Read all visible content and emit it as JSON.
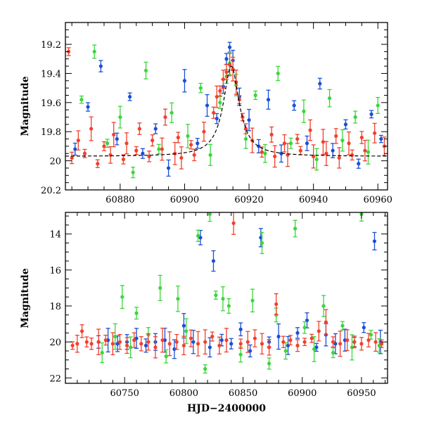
{
  "chart_data": [
    {
      "type": "scatter",
      "panel": "top",
      "title": "",
      "xlabel": "",
      "ylabel": "Magnitude",
      "xlim": [
        60863,
        60963
      ],
      "ylim": [
        20.2,
        19.05
      ],
      "y_inverted": true,
      "xticks": [
        60880,
        60900,
        60920,
        60940,
        60960
      ],
      "yticks": [
        19.2,
        19.4,
        19.6,
        19.8,
        20,
        20.2
      ],
      "xtick_labels": [
        "60880",
        "60900",
        "60920",
        "60940",
        "60960"
      ],
      "ytick_labels": [
        "19.2",
        "19.4",
        "19.6",
        "19.8",
        "20",
        "20.2"
      ],
      "model_curve": {
        "style": "dashed",
        "color": "#000000",
        "baseline_mag": 19.97,
        "peak_mag": 19.35,
        "peak_time": 60914.5,
        "width_days": 3.0
      },
      "series": [
        {
          "name": "blue",
          "color": "#1a4fd6",
          "points": [
            [
              60866,
              19.92
            ],
            [
              60870,
              19.63
            ],
            [
              60874,
              19.35
            ],
            [
              60879,
              19.85
            ],
            [
              60883,
              19.56
            ],
            [
              60887,
              19.95
            ],
            [
              60891,
              19.78
            ],
            [
              60895,
              20.05
            ],
            [
              60900,
              19.45
            ],
            [
              60904,
              19.88
            ],
            [
              60907,
              19.62
            ],
            [
              60910,
              19.71
            ],
            [
              60912,
              19.49
            ],
            [
              60913,
              19.3
            ],
            [
              60914,
              19.22
            ],
            [
              60915,
              19.31
            ],
            [
              60917,
              19.56
            ],
            [
              60920,
              19.72
            ],
            [
              60923,
              19.9
            ],
            [
              60926,
              19.58
            ],
            [
              60930,
              19.95
            ],
            [
              60934,
              19.62
            ],
            [
              60938,
              19.88
            ],
            [
              60942,
              19.47
            ],
            [
              60946,
              19.93
            ],
            [
              60950,
              19.75
            ],
            [
              60954,
              20.02
            ],
            [
              60958,
              19.68
            ],
            [
              60961,
              19.85
            ]
          ]
        },
        {
          "name": "green",
          "color": "#3ad63a",
          "points": [
            [
              60868,
              19.58
            ],
            [
              60872,
              19.25
            ],
            [
              60876,
              19.88
            ],
            [
              60880,
              19.7
            ],
            [
              60884,
              20.08
            ],
            [
              60888,
              19.38
            ],
            [
              60892,
              19.92
            ],
            [
              60896,
              19.67
            ],
            [
              60901,
              19.83
            ],
            [
              60905,
              19.5
            ],
            [
              60908,
              19.96
            ],
            [
              60911,
              19.6
            ],
            [
              60913,
              19.42
            ],
            [
              60914,
              19.33
            ],
            [
              60916,
              19.48
            ],
            [
              60919,
              19.85
            ],
            [
              60922,
              19.55
            ],
            [
              60925,
              19.95
            ],
            [
              60929,
              19.4
            ],
            [
              60933,
              19.88
            ],
            [
              60937,
              19.66
            ],
            [
              60941,
              19.99
            ],
            [
              60945,
              19.57
            ],
            [
              60949,
              19.86
            ],
            [
              60953,
              19.7
            ],
            [
              60957,
              19.94
            ],
            [
              60960,
              19.62
            ]
          ]
        },
        {
          "name": "red",
          "color": "#f0412c",
          "points": [
            [
              60864,
              19.25
            ],
            [
              60865,
              19.98
            ],
            [
              60867,
              19.86
            ],
            [
              60869,
              19.95
            ],
            [
              60871,
              19.78
            ],
            [
              60873,
              20.02
            ],
            [
              60875,
              19.9
            ],
            [
              60877,
              19.96
            ],
            [
              60878,
              19.82
            ],
            [
              60881,
              19.99
            ],
            [
              60882,
              19.88
            ],
            [
              60885,
              19.93
            ],
            [
              60886,
              19.78
            ],
            [
              60889,
              19.97
            ],
            [
              60890,
              19.86
            ],
            [
              60893,
              19.92
            ],
            [
              60894,
              19.7
            ],
            [
              60897,
              19.95
            ],
            [
              60898,
              19.84
            ],
            [
              60899,
              19.98
            ],
            [
              60902,
              19.89
            ],
            [
              60903,
              19.96
            ],
            [
              60906,
              19.8
            ],
            [
              60909,
              19.67
            ],
            [
              60910,
              19.56
            ],
            [
              60911,
              19.52
            ],
            [
              60912,
              19.44
            ],
            [
              60913,
              19.39
            ],
            [
              60914,
              19.34
            ],
            [
              60915,
              19.37
            ],
            [
              60916,
              19.46
            ],
            [
              60917,
              19.58
            ],
            [
              60918,
              19.7
            ],
            [
              60919,
              19.78
            ],
            [
              60921,
              19.86
            ],
            [
              60924,
              19.94
            ],
            [
              60927,
              19.82
            ],
            [
              60928,
              19.97
            ],
            [
              60931,
              19.88
            ],
            [
              60932,
              19.96
            ],
            [
              60935,
              19.85
            ],
            [
              60936,
              19.93
            ],
            [
              60939,
              19.79
            ],
            [
              60940,
              19.97
            ],
            [
              60943,
              19.87
            ],
            [
              60944,
              19.95
            ],
            [
              60947,
              19.83
            ],
            [
              60948,
              19.98
            ],
            [
              60951,
              19.88
            ],
            [
              60952,
              19.96
            ],
            [
              60955,
              19.84
            ],
            [
              60956,
              19.93
            ],
            [
              60959,
              19.81
            ],
            [
              60962,
              19.9
            ]
          ]
        }
      ]
    },
    {
      "type": "scatter",
      "panel": "bottom",
      "title": "",
      "xlabel": "HJD−2400000",
      "ylabel": "Magnitude",
      "xlim": [
        60700,
        60972
      ],
      "ylim": [
        22.3,
        12.8
      ],
      "y_inverted": true,
      "xticks": [
        60750,
        60800,
        60850,
        60900,
        60950
      ],
      "yticks": [
        14,
        16,
        18,
        20,
        22
      ],
      "xtick_labels": [
        "60750",
        "60800",
        "60850",
        "60900",
        "60950"
      ],
      "ytick_labels": [
        "14",
        "16",
        "18",
        "20",
        "22"
      ],
      "series": [
        {
          "name": "blue",
          "color": "#1a4fd6",
          "points": [
            [
              60728,
              20.0
            ],
            [
              60736,
              19.9
            ],
            [
              60744,
              20.1
            ],
            [
              60752,
              20.0
            ],
            [
              60760,
              19.8
            ],
            [
              60768,
              20.2
            ],
            [
              60776,
              20.0
            ],
            [
              60784,
              19.9
            ],
            [
              60792,
              20.4
            ],
            [
              60800,
              19.1
            ],
            [
              60808,
              20.0
            ],
            [
              60814,
              14.2
            ],
            [
              60822,
              20.3
            ],
            [
              60825,
              15.5
            ],
            [
              60832,
              19.9
            ],
            [
              60840,
              20.1
            ],
            [
              60848,
              19.3
            ],
            [
              60856,
              20.5
            ],
            [
              60865,
              14.2
            ],
            [
              60872,
              20.0
            ],
            [
              60880,
              19.7
            ],
            [
              60888,
              20.2
            ],
            [
              60896,
              19.5
            ],
            [
              60904,
              18.8
            ],
            [
              60912,
              20.3
            ],
            [
              60920,
              19.6
            ],
            [
              60928,
              20.1
            ],
            [
              60936,
              19.9
            ],
            [
              60944,
              20.0
            ],
            [
              60952,
              19.2
            ],
            [
              60961,
              14.4
            ],
            [
              60966,
              20.0
            ]
          ]
        },
        {
          "name": "green",
          "color": "#3ad63a",
          "points": [
            [
              60731,
              20.6
            ],
            [
              60742,
              19.7
            ],
            [
              60748,
              17.5
            ],
            [
              60755,
              20.3
            ],
            [
              60760,
              18.4
            ],
            [
              60770,
              19.6
            ],
            [
              60780,
              17.0
            ],
            [
              60785,
              20.8
            ],
            [
              60795,
              17.6
            ],
            [
              60802,
              19.4
            ],
            [
              60812,
              14.1
            ],
            [
              60818,
              21.5
            ],
            [
              60822,
              12.9
            ],
            [
              60827,
              17.4
            ],
            [
              60833,
              17.6
            ],
            [
              60838,
              18.0
            ],
            [
              60848,
              20.7
            ],
            [
              60858,
              17.7
            ],
            [
              60866,
              14.5
            ],
            [
              60872,
              21.2
            ],
            [
              60878,
              18.5
            ],
            [
              60886,
              20.5
            ],
            [
              60894,
              13.7
            ],
            [
              60902,
              19.2
            ],
            [
              60910,
              20.4
            ],
            [
              60918,
              18.0
            ],
            [
              60926,
              20.6
            ],
            [
              60934,
              19.1
            ],
            [
              60942,
              20.3
            ],
            [
              60950,
              12.9
            ],
            [
              60958,
              19.6
            ],
            [
              60965,
              20.2
            ]
          ]
        },
        {
          "name": "red",
          "color": "#f0412c",
          "points": [
            [
              60706,
              20.2
            ],
            [
              60710,
              20.1
            ],
            [
              60714,
              19.4
            ],
            [
              60718,
              20.0
            ],
            [
              60722,
              20.1
            ],
            [
              60728,
              20.0
            ],
            [
              60734,
              19.9
            ],
            [
              60740,
              20.1
            ],
            [
              60746,
              20.0
            ],
            [
              60752,
              20.2
            ],
            [
              60758,
              19.9
            ],
            [
              60764,
              20.1
            ],
            [
              60770,
              20.0
            ],
            [
              60776,
              20.3
            ],
            [
              60782,
              19.9
            ],
            [
              60788,
              20.1
            ],
            [
              60794,
              20.0
            ],
            [
              60800,
              20.2
            ],
            [
              60806,
              19.8
            ],
            [
              60812,
              20.1
            ],
            [
              60818,
              20.0
            ],
            [
              60824,
              19.7
            ],
            [
              60830,
              20.2
            ],
            [
              60836,
              19.9
            ],
            [
              60842,
              13.4
            ],
            [
              60848,
              20.1
            ],
            [
              60854,
              20.0
            ],
            [
              60860,
              19.8
            ],
            [
              60866,
              20.1
            ],
            [
              60872,
              20.3
            ],
            [
              60878,
              17.9
            ],
            [
              60884,
              20.0
            ],
            [
              60890,
              19.9
            ],
            [
              60896,
              20.2
            ],
            [
              60902,
              20.0
            ],
            [
              60908,
              19.8
            ],
            [
              60914,
              19.4
            ],
            [
              60920,
              18.9
            ],
            [
              60926,
              20.0
            ],
            [
              60932,
              20.1
            ],
            [
              60938,
              19.9
            ],
            [
              60944,
              20.0
            ],
            [
              60950,
              20.1
            ],
            [
              60956,
              19.9
            ],
            [
              60962,
              20.0
            ],
            [
              60967,
              20.1
            ]
          ]
        }
      ]
    }
  ]
}
